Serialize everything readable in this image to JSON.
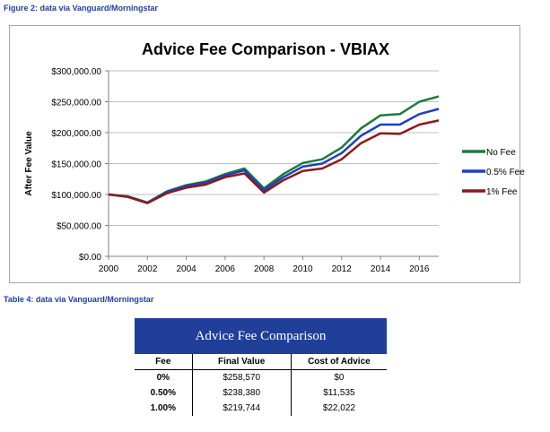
{
  "figure_caption": "Figure 2: data via Vanguard/Morningstar",
  "table_caption": "Table 4:  data via Vanguard/Morningstar",
  "chart_data": {
    "type": "line",
    "title": "Advice Fee Comparison - VBIAX",
    "xlabel": "",
    "ylabel": "After Fee Value",
    "x": [
      2000,
      2001,
      2002,
      2003,
      2004,
      2005,
      2006,
      2007,
      2008,
      2009,
      2010,
      2011,
      2012,
      2013,
      2014,
      2015,
      2016,
      2017
    ],
    "xticks": [
      2000,
      2002,
      2004,
      2006,
      2008,
      2010,
      2012,
      2014,
      2016
    ],
    "xtick_labels": [
      "2000",
      "2002",
      "2004",
      "2006",
      "2008",
      "2010",
      "2012",
      "2014",
      "2016"
    ],
    "xlim": [
      2000,
      2017
    ],
    "yticks": [
      0,
      50000,
      100000,
      150000,
      200000,
      250000,
      300000
    ],
    "ytick_labels": [
      "$0.00",
      "$50,000.00",
      "$100,000.00",
      "$150,000.00",
      "$200,000.00",
      "$250,000.00",
      "$300,000.00"
    ],
    "ylim": [
      0,
      300000
    ],
    "grid": true,
    "legend_position": "right",
    "series": [
      {
        "name": "No Fee",
        "color": "#1e7a3a",
        "values": [
          100000,
          97000,
          87000,
          105000,
          115000,
          121000,
          133000,
          142000,
          110000,
          133000,
          151000,
          157000,
          176000,
          207000,
          228000,
          230000,
          250000,
          258570
        ]
      },
      {
        "name": "0.5% Fee",
        "color": "#1f3fbf",
        "values": [
          100000,
          96500,
          86500,
          104000,
          114000,
          119000,
          131000,
          139000,
          107000,
          128000,
          145000,
          150000,
          167000,
          195000,
          213000,
          213000,
          230000,
          238380
        ]
      },
      {
        "name": "1% Fee",
        "color": "#8b1a1a",
        "values": [
          100000,
          96000,
          86000,
          102000,
          111000,
          116000,
          128000,
          134000,
          103000,
          123000,
          138000,
          142000,
          157000,
          183000,
          199000,
          198000,
          213000,
          219744
        ]
      }
    ]
  },
  "advice_table": {
    "title": "Advice Fee Comparison",
    "headers": {
      "fee": "Fee",
      "final_value": "Final Value",
      "cost": "Cost of Advice"
    },
    "rows": [
      {
        "fee": "0%",
        "final_value": "$258,570",
        "cost": "$0"
      },
      {
        "fee": "0.50%",
        "final_value": "$238,380",
        "cost": "$11,535"
      },
      {
        "fee": "1.00%",
        "final_value": "$219,744",
        "cost": "$22,022"
      }
    ]
  }
}
